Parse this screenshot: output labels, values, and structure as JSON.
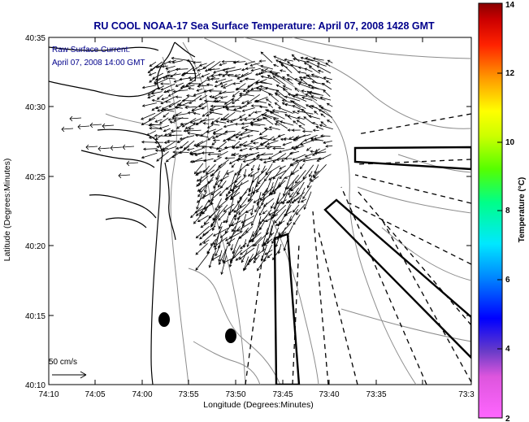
{
  "title": "RU COOL  NOAA-17  Sea Surface Temperature:  April 07, 2008 1428 GMT",
  "overlay": {
    "line1": "Raw Surface Current:",
    "line2": "April 07, 2008 14:00 GMT"
  },
  "axes": {
    "xlabel": "Longitude (Degrees:Minutes)",
    "ylabel": "Latitude (Degrees:Minutes)",
    "x_ticks": [
      "74:10",
      "74:05",
      "74:00",
      "73:55",
      "73:50",
      "73:45",
      "73:40",
      "73:35",
      "73:3"
    ],
    "y_ticks": [
      "40:35",
      "40:30",
      "40:25",
      "40:20",
      "40:15",
      "40:10"
    ]
  },
  "colorbar": {
    "label": "Temperature (°C)",
    "min": 2,
    "max": 14,
    "ticks": [
      "2",
      "4",
      "6",
      "8",
      "10",
      "12",
      "14"
    ]
  },
  "scale": {
    "label": "50 cm/s"
  },
  "colors": {
    "title": "#00008b",
    "overlay": "#00008b",
    "coast": "#000000",
    "bathymetry": "#8c8c8c",
    "vector": "#000000"
  }
}
